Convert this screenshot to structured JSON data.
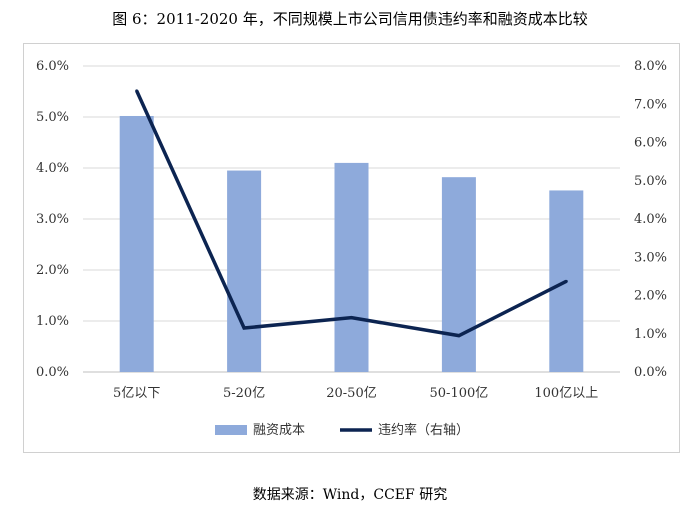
{
  "title": "图 6：2011-2020 年，不同规模上市公司信用债违约率和融资成本比较",
  "source": "数据来源：Wind，CCEF 研究",
  "chart_data": {
    "type": "bar",
    "categories": [
      "5亿以下",
      "5-20亿",
      "20-50亿",
      "50-100亿",
      "100亿以上"
    ],
    "series": [
      {
        "name": "融资成本",
        "type": "bar",
        "axis": "left",
        "color": "#8eaadb",
        "values": [
          5.02,
          3.95,
          4.1,
          3.82,
          3.56
        ]
      },
      {
        "name": "违约率（右轴）",
        "type": "line",
        "axis": "right",
        "color": "#0c2451",
        "values": [
          7.35,
          1.15,
          1.42,
          0.95,
          2.37
        ]
      }
    ],
    "left_axis": {
      "ylim": [
        0,
        6
      ],
      "ticks": [
        "0.0%",
        "1.0%",
        "2.0%",
        "3.0%",
        "4.0%",
        "5.0%",
        "6.0%"
      ]
    },
    "right_axis": {
      "ylim": [
        0,
        8
      ],
      "ticks": [
        "0.0%",
        "1.0%",
        "2.0%",
        "3.0%",
        "4.0%",
        "5.0%",
        "6.0%",
        "7.0%",
        "8.0%"
      ]
    },
    "grid": true,
    "legend": "bottom"
  }
}
